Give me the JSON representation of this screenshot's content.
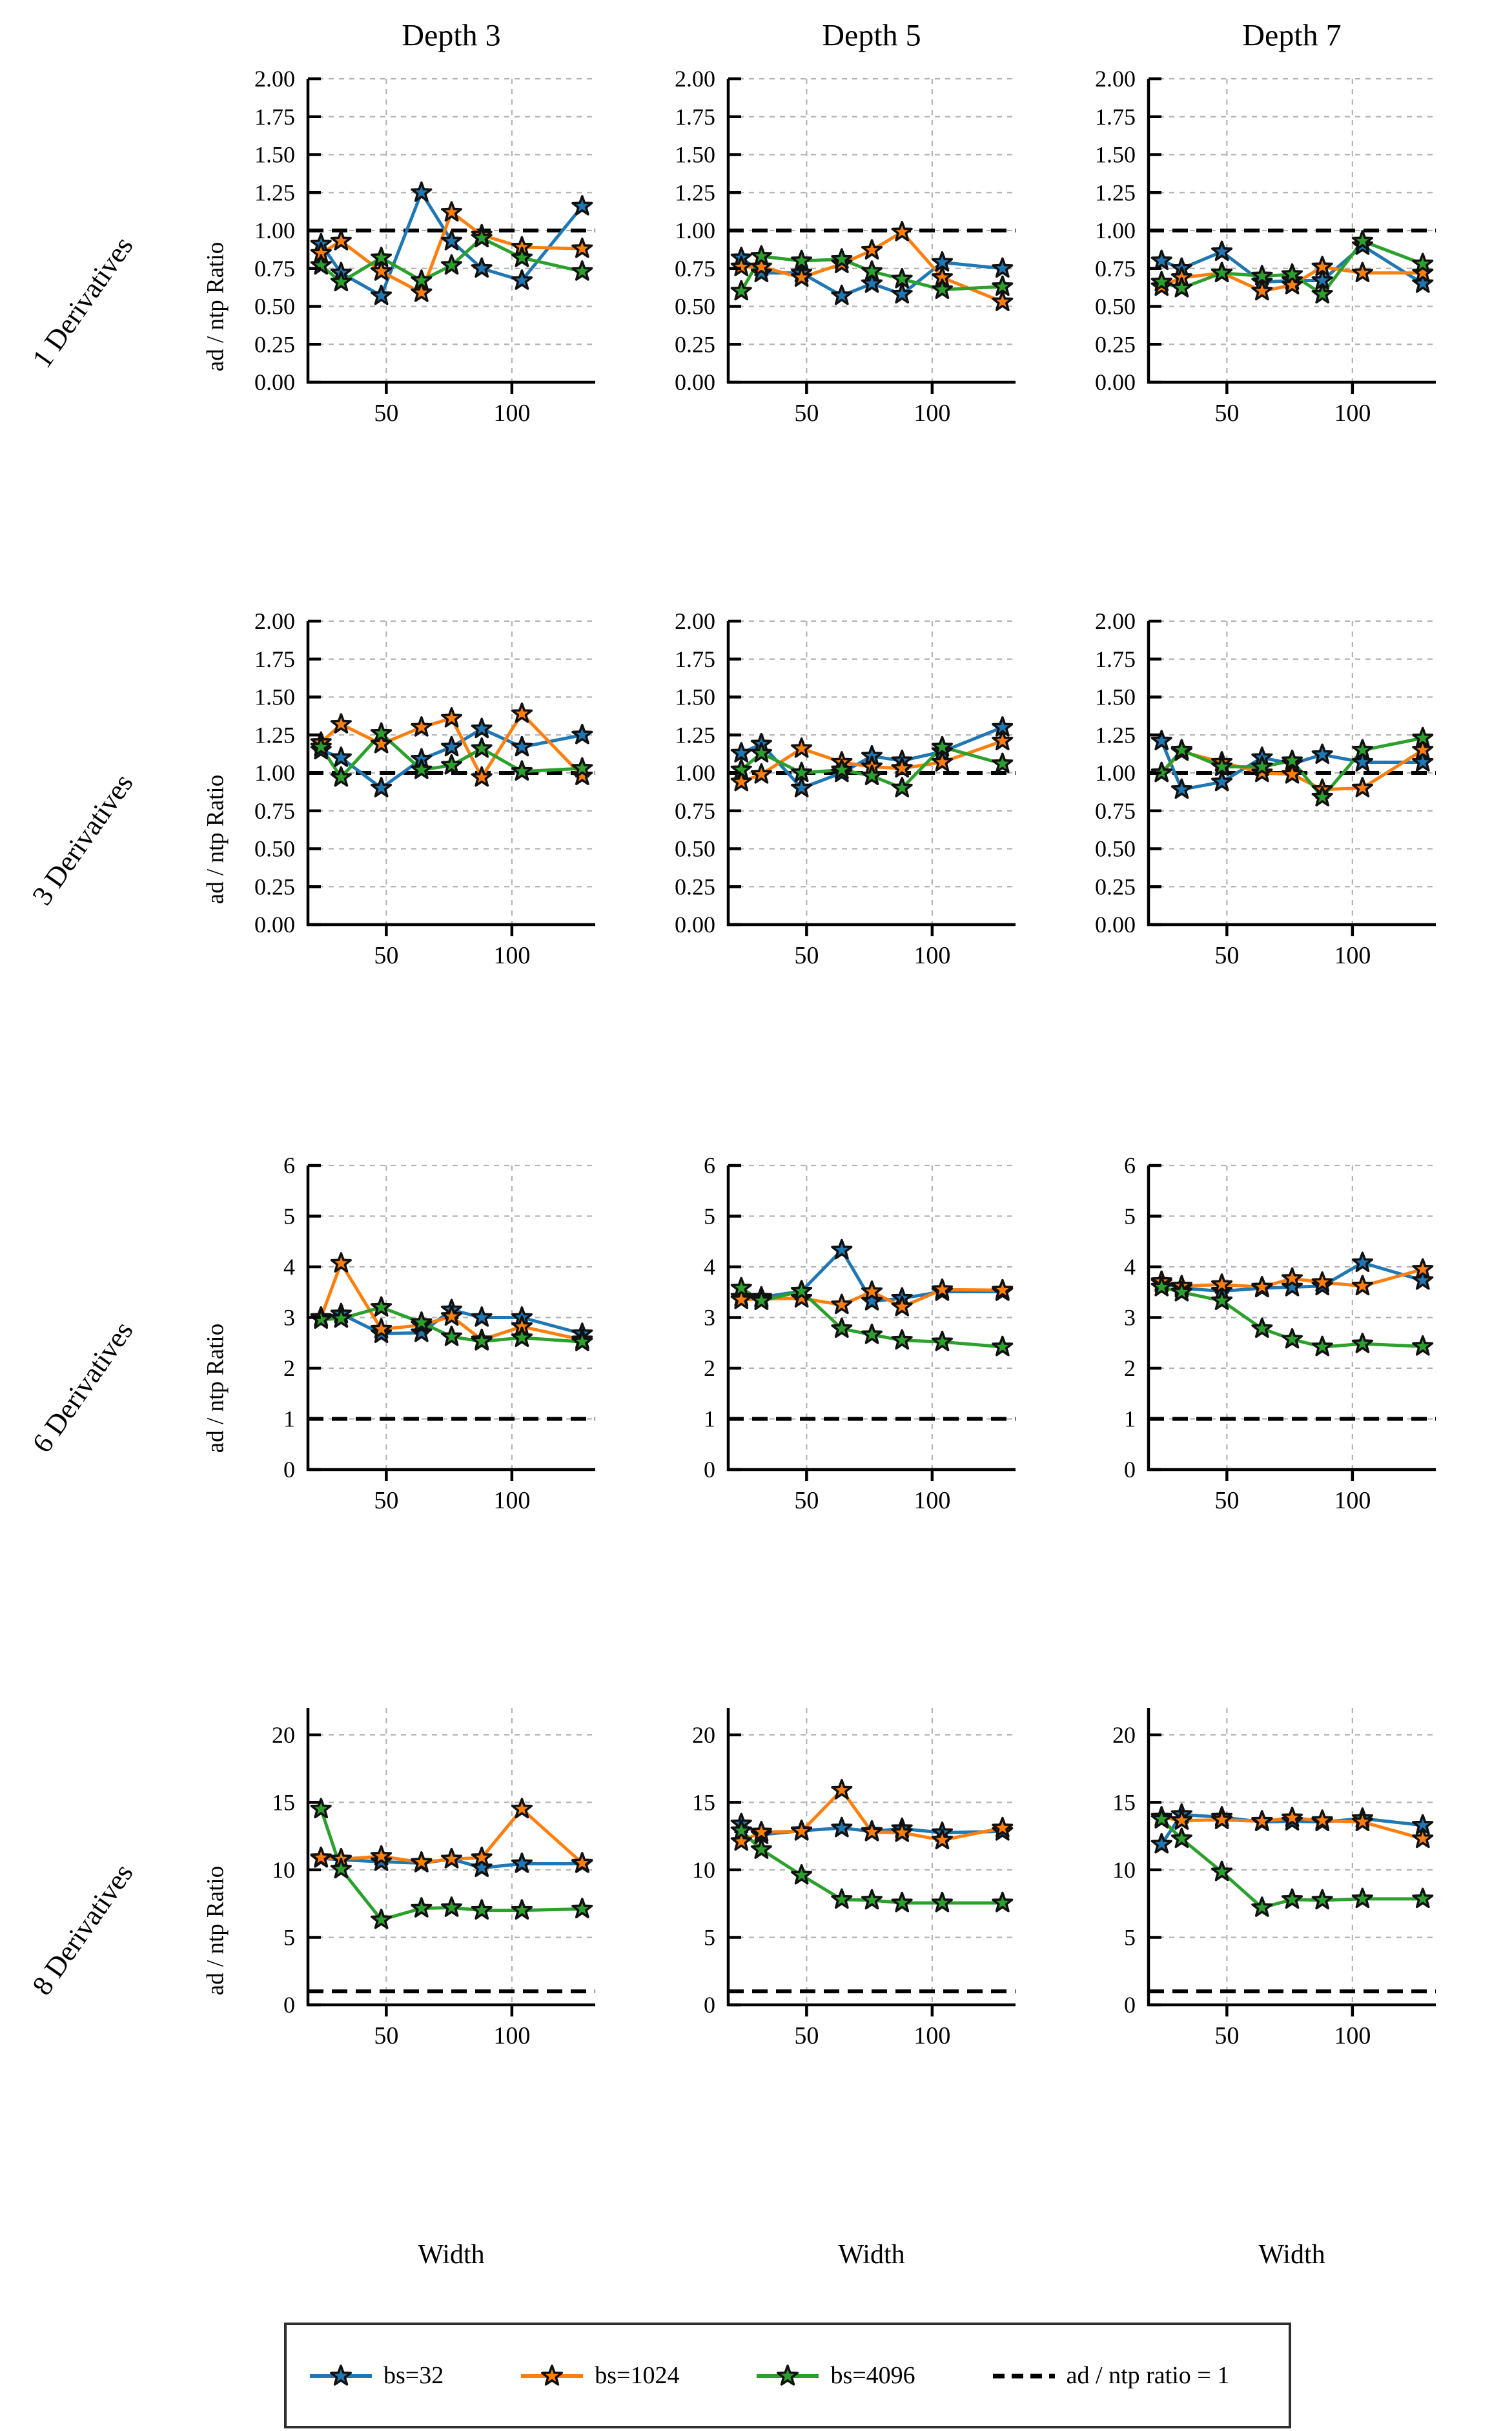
{
  "figure": {
    "col_titles": [
      "Depth 3",
      "Depth 5",
      "Depth 7"
    ],
    "row_labels": [
      "1 Derivatives",
      "3 Derivatives",
      "6 Derivatives",
      "8 Derivatives"
    ],
    "ylabel": "ad / ntp Ratio",
    "xlabel": "Width",
    "legend_ref_label": "ad / ntp ratio = 1"
  },
  "colors": {
    "bs32": "#1f77b4",
    "bs1024": "#ff7f0e",
    "bs4096": "#2ca02c",
    "ref": "#000000",
    "grid": "#b3b3b3",
    "marker_edge": "#111111"
  },
  "chart_data": {
    "type": "line",
    "x": [
      24,
      32,
      48,
      64,
      76,
      88,
      104,
      128
    ],
    "xticks": [
      50,
      100
    ],
    "xlim": [
      18.8,
      133.2
    ],
    "xlabel": "Width",
    "ylabel": "ad / ntp Ratio",
    "series_names": [
      "bs=32",
      "bs=1024",
      "bs=4096"
    ],
    "legend_position": "bottom",
    "grid": "dashed",
    "marker": "star",
    "reference_line_y": 1,
    "rows": [
      {
        "label": "1 Derivatives",
        "ylim": [
          0,
          2
        ],
        "ytick_values": [
          0,
          0.25,
          0.5,
          0.75,
          1.0,
          1.25,
          1.5,
          1.75,
          2.0
        ],
        "ytick_labels": [
          "0.00",
          "0.25",
          "0.50",
          "0.75",
          "1.00",
          "1.25",
          "1.50",
          "1.75",
          "2.00"
        ],
        "cols": [
          {
            "title": "Depth 3",
            "series": {
              "bs32": [
                0.91,
                0.72,
                0.57,
                1.25,
                0.93,
                0.75,
                0.67,
                1.16
              ],
              "bs1024": [
                0.85,
                0.93,
                0.73,
                0.59,
                1.12,
                0.97,
                0.89,
                0.88
              ],
              "bs4096": [
                0.77,
                0.66,
                0.82,
                0.67,
                0.77,
                0.95,
                0.82,
                0.73
              ]
            }
          },
          {
            "title": "Depth 5",
            "series": {
              "bs32": [
                0.82,
                0.72,
                0.72,
                0.57,
                0.65,
                0.58,
                0.79,
                0.75
              ],
              "bs1024": [
                0.76,
                0.76,
                0.69,
                0.78,
                0.87,
                0.99,
                0.69,
                0.53
              ],
              "bs4096": [
                0.6,
                0.83,
                0.8,
                0.81,
                0.73,
                0.68,
                0.61,
                0.63
              ]
            }
          },
          {
            "title": "Depth 7",
            "series": {
              "bs32": [
                0.8,
                0.75,
                0.86,
                0.66,
                0.67,
                0.67,
                0.9,
                0.65
              ],
              "bs1024": [
                0.63,
                0.69,
                0.72,
                0.6,
                0.64,
                0.76,
                0.72,
                0.72
              ],
              "bs4096": [
                0.66,
                0.62,
                0.72,
                0.7,
                0.71,
                0.58,
                0.93,
                0.78
              ]
            }
          }
        ]
      },
      {
        "label": "3 Derivatives",
        "ylim": [
          0,
          2
        ],
        "ytick_values": [
          0,
          0.25,
          0.5,
          0.75,
          1.0,
          1.25,
          1.5,
          1.75,
          2.0
        ],
        "ytick_labels": [
          "0.00",
          "0.25",
          "0.50",
          "0.75",
          "1.00",
          "1.25",
          "1.50",
          "1.75",
          "2.00"
        ],
        "cols": [
          {
            "title": "Depth 3",
            "series": {
              "bs32": [
                1.15,
                1.1,
                0.9,
                1.09,
                1.17,
                1.29,
                1.17,
                1.25
              ],
              "bs1024": [
                1.2,
                1.32,
                1.19,
                1.3,
                1.36,
                0.97,
                1.39,
                0.98
              ],
              "bs4096": [
                1.17,
                0.97,
                1.26,
                1.02,
                1.05,
                1.16,
                1.01,
                1.03
              ]
            }
          },
          {
            "title": "Depth 5",
            "series": {
              "bs32": [
                1.13,
                1.19,
                0.9,
                1.0,
                1.11,
                1.08,
                1.14,
                1.3
              ],
              "bs1024": [
                0.94,
                0.99,
                1.16,
                1.07,
                1.04,
                1.03,
                1.07,
                1.21
              ],
              "bs4096": [
                1.02,
                1.13,
                1.0,
                1.02,
                0.98,
                0.9,
                1.17,
                1.06
              ]
            }
          },
          {
            "title": "Depth 7",
            "series": {
              "bs32": [
                1.21,
                0.89,
                0.94,
                1.1,
                1.06,
                1.12,
                1.07,
                1.07
              ],
              "bs1024": [
                1.0,
                1.14,
                1.07,
                1.0,
                0.99,
                0.89,
                0.9,
                1.15
              ],
              "bs4096": [
                1.0,
                1.15,
                1.04,
                1.04,
                1.08,
                0.84,
                1.15,
                1.23
              ]
            }
          }
        ]
      },
      {
        "label": "6 Derivatives",
        "ylim": [
          0,
          6
        ],
        "ytick_values": [
          0,
          1,
          2,
          3,
          4,
          5,
          6
        ],
        "ytick_labels": [
          "0",
          "1",
          "2",
          "3",
          "4",
          "5",
          "6"
        ],
        "cols": [
          {
            "title": "Depth 3",
            "series": {
              "bs32": [
                3.0,
                3.07,
                2.68,
                2.7,
                3.15,
                3.0,
                3.0,
                2.68
              ],
              "bs1024": [
                3.0,
                4.07,
                2.77,
                2.85,
                3.02,
                2.56,
                2.82,
                2.56
              ],
              "bs4096": [
                2.96,
                2.98,
                3.2,
                2.9,
                2.62,
                2.53,
                2.6,
                2.52
              ]
            }
          },
          {
            "title": "Depth 5",
            "series": {
              "bs32": [
                3.4,
                3.4,
                3.52,
                4.33,
                3.32,
                3.38,
                3.51,
                3.51
              ],
              "bs1024": [
                3.35,
                3.37,
                3.38,
                3.25,
                3.51,
                3.21,
                3.55,
                3.54
              ],
              "bs4096": [
                3.58,
                3.33,
                3.52,
                2.78,
                2.66,
                2.55,
                2.52,
                2.42
              ]
            }
          },
          {
            "title": "Depth 7",
            "series": {
              "bs32": [
                3.68,
                3.58,
                3.52,
                3.58,
                3.6,
                3.62,
                4.08,
                3.73
              ],
              "bs1024": [
                3.71,
                3.62,
                3.65,
                3.6,
                3.77,
                3.69,
                3.62,
                3.95
              ],
              "bs4096": [
                3.6,
                3.5,
                3.33,
                2.78,
                2.57,
                2.42,
                2.48,
                2.43
              ]
            }
          }
        ]
      },
      {
        "label": "8 Derivatives",
        "ylim": [
          0,
          22
        ],
        "ytick_values": [
          0,
          5,
          10,
          15,
          20
        ],
        "ytick_labels": [
          "0",
          "5",
          "10",
          "15",
          "20"
        ],
        "cols": [
          {
            "title": "Depth 3",
            "series": {
              "bs32": [
                10.85,
                10.75,
                10.6,
                10.5,
                10.8,
                10.15,
                10.45,
                10.45
              ],
              "bs1024": [
                10.9,
                10.8,
                11.0,
                10.55,
                10.8,
                10.9,
                14.5,
                10.5
              ],
              "bs4096": [
                14.5,
                10.05,
                6.3,
                7.15,
                7.2,
                7.0,
                7.0,
                7.1
              ]
            }
          },
          {
            "title": "Depth 5",
            "series": {
              "bs32": [
                13.4,
                12.6,
                12.9,
                13.1,
                12.85,
                13.05,
                12.75,
                12.85
              ],
              "bs1024": [
                12.1,
                12.8,
                12.85,
                15.9,
                12.8,
                12.75,
                12.2,
                13.1
              ],
              "bs4096": [
                12.9,
                11.5,
                9.6,
                7.8,
                7.75,
                7.55,
                7.55,
                7.55
              ]
            }
          },
          {
            "title": "Depth 7",
            "series": {
              "bs32": [
                11.9,
                14.1,
                13.9,
                13.55,
                13.6,
                13.55,
                13.8,
                13.3
              ],
              "bs1024": [
                13.9,
                13.65,
                13.7,
                13.6,
                13.85,
                13.65,
                13.55,
                12.3
              ],
              "bs4096": [
                13.75,
                12.3,
                9.85,
                7.2,
                7.8,
                7.75,
                7.85,
                7.85
              ]
            }
          }
        ]
      }
    ]
  }
}
